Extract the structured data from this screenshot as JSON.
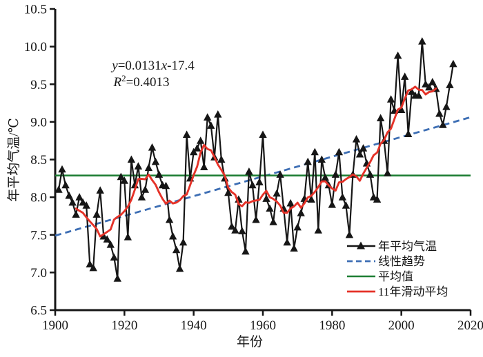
{
  "chart_data": {
    "type": "line",
    "title": "",
    "xlabel": "年份",
    "ylabel": "年平均气温/℃",
    "xlim": [
      1900,
      2020
    ],
    "ylim": [
      6.5,
      10.5
    ],
    "x_ticks": [
      1900,
      1920,
      1940,
      1960,
      1980,
      2000,
      2020
    ],
    "y_ticks": [
      6.5,
      7.0,
      7.5,
      8.0,
      8.5,
      9.0,
      9.5,
      10.0,
      10.5
    ],
    "grid": false,
    "legend_position": "bottom-right",
    "annotation": {
      "line1_var1": "y",
      "line1_mid": "=0.0131",
      "line1_var2": "x",
      "line1_end": "-17.4",
      "line2_var": "R",
      "line2_sup": "2",
      "line2_end": "=0.4013"
    },
    "colors": {
      "annual": "#161616",
      "trend": "#3d6eb4",
      "mean": "#1e7e34",
      "moving_average": "#e53228"
    },
    "series": [
      {
        "name": "年平均气温",
        "kind": "annual-line-with-triangle-markers",
        "start_year": 1901,
        "values": [
          8.1,
          8.37,
          8.16,
          8.02,
          7.93,
          7.77,
          8.0,
          7.93,
          7.89,
          7.11,
          7.06,
          7.77,
          8.09,
          7.48,
          7.44,
          7.37,
          7.2,
          6.92,
          8.27,
          8.22,
          7.47,
          8.5,
          8.16,
          8.41,
          8.0,
          8.1,
          8.39,
          8.66,
          8.47,
          8.3,
          8.16,
          8.15,
          7.7,
          7.48,
          7.3,
          7.05,
          7.4,
          8.83,
          8.25,
          8.6,
          8.65,
          8.75,
          8.4,
          9.06,
          8.95,
          8.53,
          9.1,
          8.5,
          8.25,
          8.06,
          7.61,
          7.56,
          7.97,
          7.55,
          7.28,
          8.34,
          8.16,
          7.7,
          8.2,
          8.83,
          7.98,
          7.85,
          7.67,
          8.05,
          8.3,
          7.85,
          7.4,
          7.92,
          7.32,
          7.6,
          7.79,
          7.98,
          8.47,
          7.97,
          8.6,
          7.56,
          8.5,
          8.26,
          8.16,
          7.9,
          8.3,
          8.6,
          8.0,
          7.89,
          7.5,
          8.3,
          8.77,
          8.57,
          8.65,
          8.45,
          8.3,
          8.0,
          7.97,
          9.05,
          8.75,
          8.32,
          9.3,
          9.15,
          9.88,
          9.16,
          9.6,
          8.84,
          9.4,
          9.35,
          9.35,
          10.07,
          9.5,
          9.46,
          9.53,
          9.44,
          9.11,
          8.96,
          9.2,
          9.49,
          9.77
        ]
      },
      {
        "name": "线性趋势",
        "kind": "linear-trend",
        "slope": 0.0131,
        "intercept": -17.4,
        "style": "dashed"
      },
      {
        "name": "平均值",
        "kind": "mean-line",
        "style": "solid"
      },
      {
        "name": "11年滑动平均",
        "kind": "moving-average",
        "window": 11,
        "style": "solid"
      }
    ]
  }
}
